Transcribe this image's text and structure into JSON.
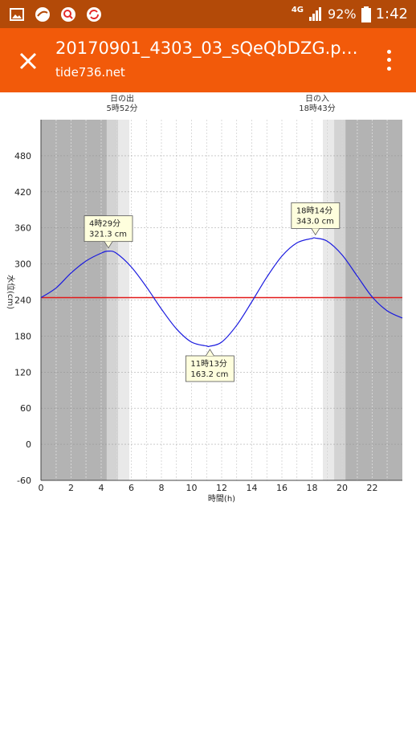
{
  "status_bar": {
    "network": "4G",
    "battery": "92%",
    "time": "1:42",
    "icons": [
      "gallery-icon",
      "app-icon",
      "search-app-icon",
      "sync-app-icon",
      "signal-icon",
      "battery-icon"
    ]
  },
  "app_bar": {
    "title": "20170901_4303_03_sQeQbDZG.pn...",
    "subtitle": "tide736.net",
    "close_icon": "close-icon",
    "menu_icon": "more-vert-icon"
  },
  "colors": {
    "status_bar": "#b34a08",
    "app_bar": "#f25a0a",
    "curve": "#1a1adf",
    "mean_line": "#e21a1a",
    "night": "#b3b3b3",
    "twilight": "#d3d3d3"
  },
  "chart_data": {
    "type": "line",
    "xlabel": "時間(h)",
    "ylabel": "水位(cm)",
    "xlim": [
      0,
      24
    ],
    "ylim": [
      -60,
      540
    ],
    "x_ticks": [
      0,
      2,
      4,
      6,
      8,
      10,
      12,
      14,
      16,
      18,
      20,
      22
    ],
    "y_ticks": [
      -60,
      0,
      60,
      120,
      180,
      240,
      300,
      360,
      420,
      480
    ],
    "grid": true,
    "mean_level": 244,
    "sunrise": {
      "label": "日の出",
      "time": "5時52分",
      "hour": 5.87
    },
    "sunset": {
      "label": "日の入",
      "time": "18時43分",
      "hour": 18.72
    },
    "series": [
      {
        "x": [
          0,
          1,
          2,
          3,
          4,
          4.48,
          5,
          6,
          7,
          8,
          9,
          10,
          11,
          11.22,
          12,
          13,
          14,
          15,
          16,
          17,
          18,
          18.23,
          19,
          20,
          21,
          22,
          23,
          24
        ],
        "values": [
          244,
          260,
          285,
          305,
          318,
          321.3,
          318,
          295,
          262,
          225,
          192,
          170,
          163.5,
          163.2,
          170,
          198,
          237,
          278,
          313,
          335,
          342.5,
          343,
          338,
          315,
          280,
          245,
          222,
          210
        ]
      }
    ],
    "annotations": [
      {
        "line1": "4時29分",
        "line2": "321.3 cm",
        "x": 4.48,
        "y": 321.3
      },
      {
        "line1": "11時13分",
        "line2": "163.2 cm",
        "x": 11.22,
        "y": 163.2
      },
      {
        "line1": "18時14分",
        "line2": "343.0 cm",
        "x": 18.23,
        "y": 343.0
      }
    ]
  }
}
